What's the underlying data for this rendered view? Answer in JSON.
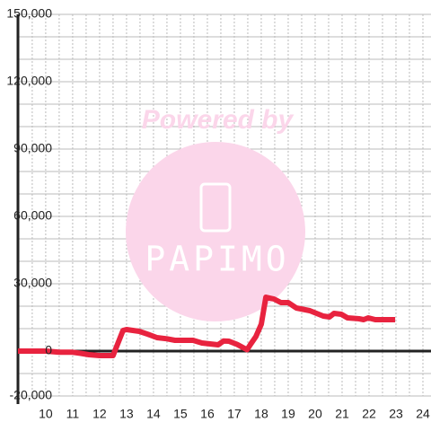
{
  "chart_data": {
    "type": "line",
    "watermark": {
      "line1": "Powered by",
      "line2": "PAPIMO"
    },
    "x": [
      8.97,
      10,
      10.5,
      11,
      11.3,
      11.6,
      12,
      12.5,
      12.87,
      13,
      13.47,
      13.8,
      14.13,
      14.5,
      14.8,
      15.47,
      15.8,
      16.1,
      16.4,
      16.6,
      16.8,
      17.1,
      17.47,
      17.6,
      17.8,
      18.0,
      18.17,
      18.47,
      18.73,
      19.0,
      19.3,
      19.8,
      20.3,
      20.53,
      20.7,
      20.97,
      21.2,
      21.63,
      21.8,
      21.97,
      22.23,
      22.97
    ],
    "values": [
      0,
      0,
      -500,
      -500,
      -1000,
      -1600,
      -2000,
      -2000,
      9200,
      9600,
      8800,
      7500,
      6000,
      5500,
      4800,
      4800,
      3600,
      3200,
      2800,
      4500,
      4400,
      3000,
      600,
      3000,
      6500,
      12000,
      24000,
      23200,
      21600,
      21600,
      19200,
      18000,
      15600,
      15200,
      16800,
      16400,
      14800,
      14400,
      14000,
      14800,
      14000,
      14000
    ],
    "color": "#e8233f",
    "xlim": [
      8.97,
      24.3
    ],
    "ylim": [
      -20000,
      150000
    ],
    "xticks": [
      10,
      11,
      12,
      13,
      14,
      15,
      16,
      17,
      18,
      19,
      20,
      21,
      22,
      23,
      24
    ],
    "xminor": [
      9.5,
      10.5,
      11.5,
      12.5,
      13.5,
      14.5,
      15.5,
      16.5,
      17.5,
      18.5,
      19.5,
      20.5,
      21.5,
      22.5,
      23.5
    ],
    "yticks": [
      {
        "value": 150000,
        "label": "150,000"
      },
      {
        "value": 120000,
        "label": "120,000"
      },
      {
        "value": 90000,
        "label": "90,000"
      },
      {
        "value": 60000,
        "label": "60,000"
      },
      {
        "value": 30000,
        "label": "30,000"
      },
      0,
      {
        "value": -20000,
        "label": "-20,000"
      }
    ],
    "yminor": [
      140000,
      130000,
      110000,
      100000,
      80000,
      70000,
      50000,
      40000,
      20000,
      10000,
      -10000
    ],
    "grid": true
  }
}
